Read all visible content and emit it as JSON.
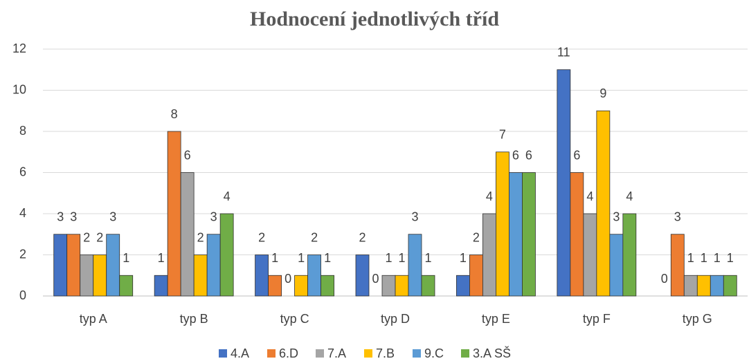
{
  "chart_data": {
    "type": "bar",
    "title": "Hodnocení jednotlivých tříd",
    "categories": [
      "typ A",
      "typ B",
      "typ C",
      "typ D",
      "typ E",
      "typ F",
      "typ G"
    ],
    "series": [
      {
        "name": "4.A",
        "color": "#4472c4",
        "values": [
          3,
          1,
          2,
          2,
          1,
          11,
          0
        ]
      },
      {
        "name": "6.D",
        "color": "#ed7d31",
        "values": [
          3,
          8,
          1,
          0,
          2,
          6,
          3
        ]
      },
      {
        "name": "7.A",
        "color": "#a5a5a5",
        "values": [
          2,
          6,
          0,
          1,
          4,
          4,
          1
        ]
      },
      {
        "name": "7.B",
        "color": "#ffc000",
        "values": [
          2,
          2,
          1,
          1,
          7,
          9,
          1
        ]
      },
      {
        "name": "9.C",
        "color": "#5b9bd5",
        "values": [
          3,
          3,
          2,
          3,
          6,
          3,
          1
        ]
      },
      {
        "name": "3.A SŠ",
        "color": "#70ad47",
        "values": [
          1,
          4,
          1,
          1,
          6,
          4,
          1
        ]
      }
    ],
    "ylim": [
      0,
      12
    ],
    "yticks": [
      0,
      2,
      4,
      6,
      8,
      10,
      12
    ],
    "grid": true,
    "legend": "bottom"
  }
}
